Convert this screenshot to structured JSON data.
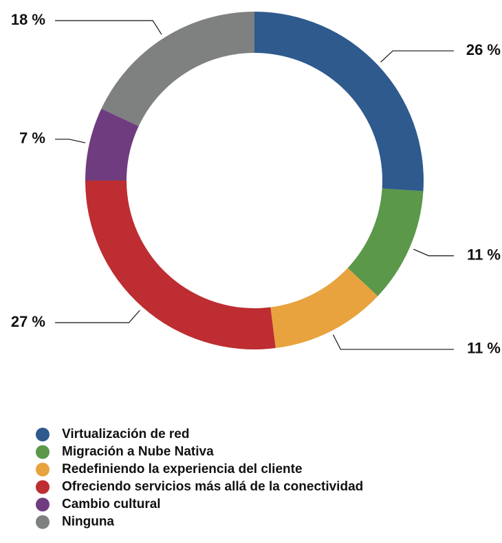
{
  "chart_data": {
    "type": "donut",
    "categories": [
      "Virtualización de red",
      "Migración a Nube Nativa",
      "Redefiniendo la experiencia del cliente",
      "Ofreciendo servicios más allá de la conectividad",
      "Cambio cultural",
      "Ninguna"
    ],
    "values": [
      26,
      11,
      11,
      27,
      7,
      18
    ],
    "value_labels": [
      "26 %",
      "11 %",
      "11 %",
      "27 %",
      "7 %",
      "18 %"
    ],
    "colors": [
      "#2e5a8e",
      "#5b984a",
      "#e8a33e",
      "#bd2d31",
      "#6f3d7f",
      "#7f8080"
    ]
  }
}
